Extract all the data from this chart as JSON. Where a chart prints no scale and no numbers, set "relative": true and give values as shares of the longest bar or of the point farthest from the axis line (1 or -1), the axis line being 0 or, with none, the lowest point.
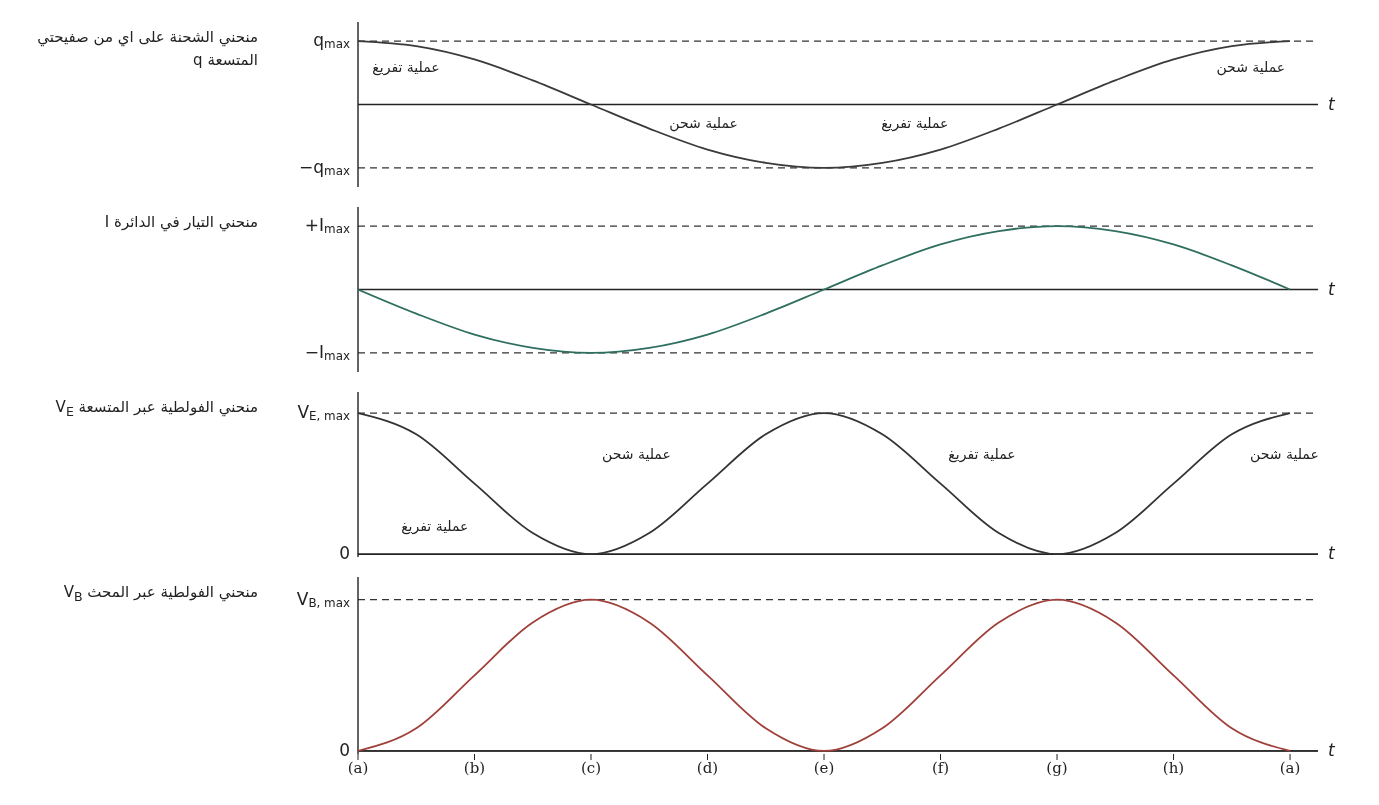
{
  "chart_data": [
    {
      "type": "line",
      "relative": true,
      "ylabel": "منحني الشحنة على اي من صفيحتي المتسعة q",
      "xlabel": "t",
      "tick_labels": false,
      "marker": "none",
      "categories": [
        null,
        null,
        null,
        null,
        null,
        null,
        null,
        null,
        null,
        null,
        null,
        null,
        null,
        null,
        null,
        null,
        null
      ],
      "series": [
        {
          "color": "#3a3a3a",
          "values": [
            1,
            0.92,
            0.71,
            0.38,
            0,
            -0.38,
            -0.71,
            -0.92,
            -1,
            -0.92,
            -0.71,
            -0.38,
            0,
            0.38,
            0.71,
            0.92,
            1
          ]
        }
      ],
      "ref_lines": [
        {
          "axis": "y",
          "value": 1,
          "label": "q$_{max}$",
          "color": "#333333",
          "line_style": "dashed"
        },
        {
          "axis": "y",
          "value": -1,
          "label": "−q$_{max}$",
          "color": "#333333",
          "line_style": "dashed"
        }
      ],
      "annotations": [
        "عملية تفريغ",
        "عملية شحن",
        "عملية تفريغ",
        "عملية شحن"
      ]
    },
    {
      "type": "line",
      "relative": true,
      "ylabel": "منحني التيار في الدائرة I",
      "xlabel": "t",
      "tick_labels": false,
      "marker": "none",
      "categories": [
        null,
        null,
        null,
        null,
        null,
        null,
        null,
        null,
        null,
        null,
        null,
        null,
        null,
        null,
        null,
        null,
        null
      ],
      "series": [
        {
          "color": "#2f6f5f",
          "values": [
            0,
            -0.38,
            -0.71,
            -0.92,
            -1,
            -0.92,
            -0.71,
            -0.38,
            0,
            0.38,
            0.71,
            0.92,
            1,
            0.92,
            0.71,
            0.38,
            0
          ]
        }
      ],
      "ref_lines": [
        {
          "axis": "y",
          "value": 1,
          "label": "+I$_{max}$",
          "color": "#333333",
          "line_style": "dashed"
        },
        {
          "axis": "y",
          "value": -1,
          "label": "−I$_{max}$",
          "color": "#333333",
          "line_style": "dashed"
        }
      ]
    },
    {
      "type": "line",
      "relative": true,
      "ylabel": "منحني الفولطية عبر المتسعة V$_{E}$",
      "xlabel": "t",
      "tick_labels": false,
      "marker": "none",
      "categories": [
        null,
        null,
        null,
        null,
        null,
        null,
        null,
        null,
        null,
        null,
        null,
        null,
        null,
        null,
        null,
        null,
        null
      ],
      "series": [
        {
          "color": "#333333",
          "values": [
            1,
            0.85,
            0.5,
            0.15,
            0,
            0.15,
            0.5,
            0.85,
            1,
            0.85,
            0.5,
            0.15,
            0,
            0.15,
            0.5,
            0.85,
            1
          ]
        }
      ],
      "ref_lines": [
        {
          "axis": "y",
          "value": 1,
          "label": "V$_{E, max}$",
          "color": "#333333",
          "line_style": "dashed"
        },
        {
          "axis": "y",
          "value": 0,
          "label": "0",
          "color": "#222222",
          "line_style": "solid"
        }
      ],
      "annotations": [
        "عملية تفريغ",
        "عملية شحن",
        "عملية تفريغ",
        "عملية شحن"
      ]
    },
    {
      "type": "line",
      "relative": true,
      "ylabel": "منحني الفولطية عبر المحث V$_{B}$",
      "xlabel": "t",
      "tick_labels": "x",
      "marker": "none",
      "categories": [
        "(a)",
        null,
        "(b)",
        null,
        "(c)",
        null,
        "(d)",
        null,
        "(e)",
        null,
        "(f)",
        null,
        "(g)",
        null,
        "(h)",
        null,
        "(a)"
      ],
      "series": [
        {
          "color": "#a0403a",
          "values": [
            0,
            0.15,
            0.5,
            0.85,
            1,
            0.85,
            0.5,
            0.15,
            0,
            0.15,
            0.5,
            0.85,
            1,
            0.85,
            0.5,
            0.15,
            0
          ]
        }
      ],
      "ref_lines": [
        {
          "axis": "y",
          "value": 1,
          "label": "V$_{B, max}$",
          "color": "#333333",
          "line_style": "dashed"
        },
        {
          "axis": "y",
          "value": 0,
          "label": "0",
          "color": "#222222",
          "line_style": "solid"
        }
      ]
    }
  ]
}
